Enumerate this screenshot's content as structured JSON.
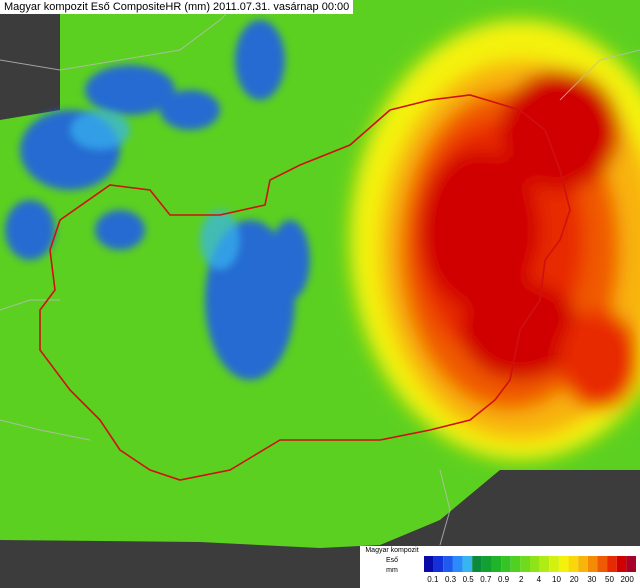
{
  "header": {
    "title": "Magyar kompozit Eső CompositeHR (mm) 2011.07.31. vasárnap 00:00"
  },
  "legend": {
    "lines": [
      "Magyar kompozit",
      "Eső",
      "mm"
    ],
    "labels": [
      0.1,
      0.3,
      0.5,
      0.7,
      0.9,
      2,
      4,
      10,
      20,
      30,
      50,
      200
    ],
    "colors": [
      "#0a0aa8",
      "#1430d8",
      "#1e5af0",
      "#2a8cf8",
      "#38b4f0",
      "#0a8a3a",
      "#12a032",
      "#20b428",
      "#36c424",
      "#50d020",
      "#6edc1c",
      "#8ee418",
      "#b0ec14",
      "#d4f010",
      "#f4f20c",
      "#f8d80a",
      "#f8b408",
      "#f48a06",
      "#f05a04",
      "#e82a02",
      "#d00000",
      "#a8002a"
    ]
  }
}
